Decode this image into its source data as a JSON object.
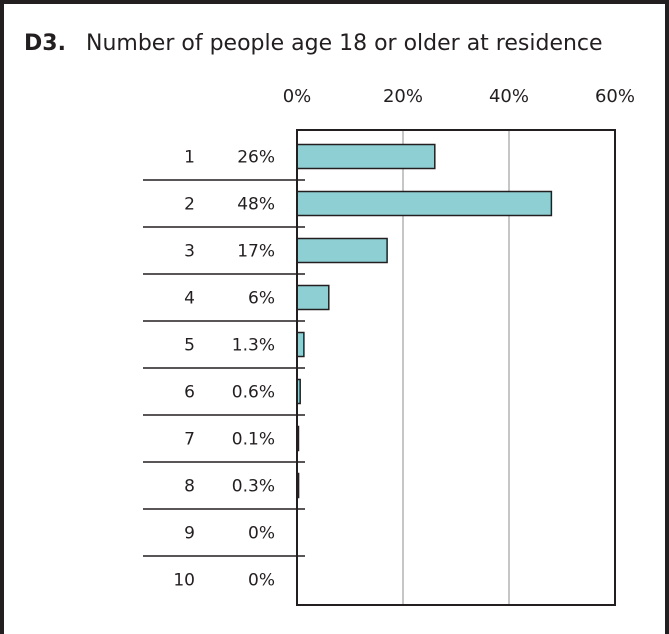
{
  "chart_data": {
    "type": "bar",
    "orientation": "horizontal",
    "question_id": "D3.",
    "title": "Number of people age 18 or older at residence",
    "categories": [
      "1",
      "2",
      "3",
      "4",
      "5",
      "6",
      "7",
      "8",
      "9",
      "10"
    ],
    "values": [
      26,
      48,
      17,
      6,
      1.3,
      0.6,
      0.1,
      0.3,
      0,
      0
    ],
    "value_labels": [
      "26%",
      "48%",
      "17%",
      "6%",
      "1.3%",
      "0.6%",
      "0.1%",
      "0.3%",
      "0%",
      "0%"
    ],
    "xlim": [
      0,
      60
    ],
    "xticks": [
      0,
      20,
      40,
      60
    ],
    "xtick_labels": [
      "0%",
      "20%",
      "40%",
      "60%"
    ],
    "grid": true,
    "bar_color": "#8ecfd3",
    "bar_stroke": "#231f20"
  }
}
